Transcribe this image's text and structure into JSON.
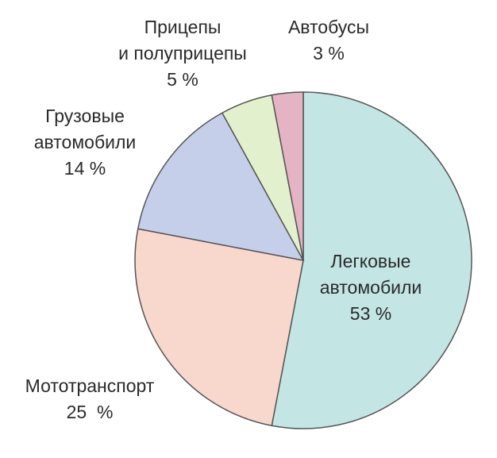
{
  "chart_data": {
    "type": "pie",
    "title": "",
    "slices": [
      {
        "lines": [
          "Легковые",
          "автомобили",
          "53 %"
        ],
        "value": 53,
        "color": "#c3e6e4"
      },
      {
        "lines": [
          "Мототранспорт",
          "25  %"
        ],
        "value": 25,
        "color": "#f8d8cc"
      },
      {
        "lines": [
          "Грузовые",
          "автомобили",
          "14 %"
        ],
        "value": 14,
        "color": "#c6cfea"
      },
      {
        "lines": [
          "Прицепы",
          "и полуприцепы",
          "5 %"
        ],
        "value": 5,
        "color": "#e3f0cd"
      },
      {
        "lines": [
          "Автобусы",
          "3 %"
        ],
        "value": 3,
        "color": "#e4b4c4"
      }
    ]
  }
}
